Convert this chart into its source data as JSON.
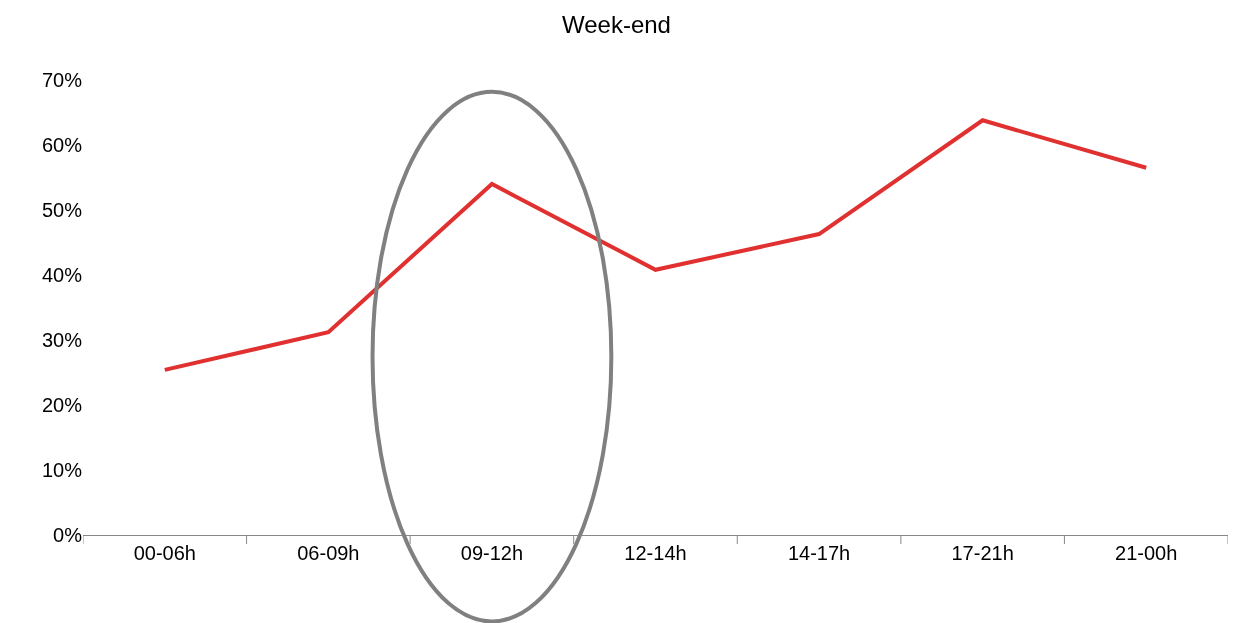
{
  "chart_data": {
    "type": "line",
    "title": "Week-end",
    "categories": [
      "00-06h",
      "06-09h",
      "09-12h",
      "12-14h",
      "14-17h",
      "17-21h",
      "21-00h"
    ],
    "series": [
      {
        "color": "#e03030",
        "values": [
          25.4,
          31.2,
          54.0,
          40.8,
          46.3,
          63.8,
          56.5
        ]
      }
    ],
    "ylim": [
      0,
      70
    ],
    "yticks": [
      {
        "value": 0,
        "label": "0%"
      },
      {
        "value": 10,
        "label": "10%"
      },
      {
        "value": 20,
        "label": "20%"
      },
      {
        "value": 30,
        "label": "30%"
      },
      {
        "value": 40,
        "label": "40%"
      },
      {
        "value": 50,
        "label": "50%"
      },
      {
        "value": 60,
        "label": "60%"
      },
      {
        "value": 70,
        "label": "70%"
      }
    ],
    "marker": "none",
    "line_style": "solid"
  }
}
